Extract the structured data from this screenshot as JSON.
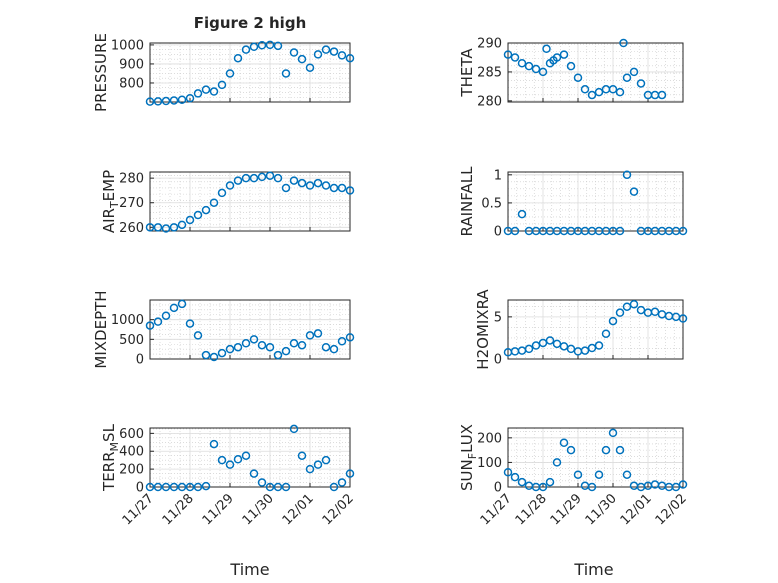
{
  "figure_title": "Figure 2 high",
  "x_axis": {
    "label": "Time",
    "tick_labels": [
      "11/27",
      "11/28",
      "11/29",
      "11/30",
      "12/01",
      "12/02"
    ],
    "range_days": [
      27,
      32
    ]
  },
  "colors": {
    "marker": "#0072BD",
    "axes": "#262626",
    "grid": "#c8c8c8",
    "background": "#ffffff"
  },
  "chart_data": [
    {
      "type": "scatter",
      "panel": "top-left",
      "ylabel": "PRESSURE",
      "ylabel_sub": "",
      "ylim": [
        700,
        1010
      ],
      "yticks": [
        800,
        900,
        1000
      ],
      "ytick_labels": [
        "800",
        "900",
        "1000"
      ],
      "grid": true,
      "marker": "circle",
      "x": [
        27.0,
        27.2,
        27.4,
        27.6,
        27.8,
        28.0,
        28.2,
        28.4,
        28.6,
        28.8,
        29.0,
        29.2,
        29.4,
        29.6,
        29.8,
        30.0,
        30.2,
        30.4,
        30.6,
        30.8,
        31.0,
        31.2,
        31.4,
        31.6,
        31.8,
        32.0
      ],
      "y": [
        702,
        703,
        705,
        708,
        712,
        720,
        745,
        765,
        755,
        790,
        850,
        930,
        975,
        990,
        998,
        1000,
        995,
        850,
        960,
        925,
        880,
        950,
        975,
        965,
        945,
        930
      ]
    },
    {
      "type": "scatter",
      "panel": "top-right",
      "ylabel": "THETA",
      "ylabel_sub": "",
      "ylim": [
        279.8,
        290
      ],
      "yticks": [
        280,
        285,
        290
      ],
      "ytick_labels": [
        "280",
        "285",
        "290"
      ],
      "grid": true,
      "marker": "circle",
      "x": [
        27.0,
        27.2,
        27.4,
        27.6,
        27.8,
        28.0,
        28.1,
        28.2,
        28.3,
        28.4,
        28.6,
        28.8,
        29.0,
        29.2,
        29.4,
        29.6,
        29.8,
        30.0,
        30.2,
        30.3,
        30.4,
        30.6,
        30.8,
        31.0,
        31.2,
        31.4
      ],
      "y": [
        288,
        287.5,
        286.5,
        286,
        285.5,
        285,
        289,
        286.5,
        287,
        287.5,
        288,
        286,
        284,
        282,
        281,
        281.5,
        282,
        282,
        281.5,
        290,
        284,
        285,
        283,
        281,
        281,
        281
      ]
    },
    {
      "type": "scatter",
      "panel": "mid-upper-left",
      "ylabel": "AIR",
      "ylabel_sub": "T",
      "ylabel_suffix": "EMP",
      "ylim": [
        258.5,
        282.5
      ],
      "yticks": [
        260,
        270,
        280
      ],
      "ytick_labels": [
        "260",
        "270",
        "280"
      ],
      "grid": true,
      "marker": "circle",
      "x": [
        27.0,
        27.2,
        27.4,
        27.6,
        27.8,
        28.0,
        28.2,
        28.4,
        28.6,
        28.8,
        29.0,
        29.2,
        29.4,
        29.6,
        29.8,
        30.0,
        30.2,
        30.4,
        30.6,
        30.8,
        31.0,
        31.2,
        31.4,
        31.6,
        31.8,
        32.0
      ],
      "y": [
        260,
        260,
        259.5,
        260,
        261,
        263,
        265,
        267,
        270,
        274,
        277,
        279,
        280,
        280,
        280.5,
        281,
        280,
        276,
        279,
        278,
        277,
        278,
        277,
        276,
        276,
        275
      ]
    },
    {
      "type": "scatter",
      "panel": "mid-upper-right",
      "ylabel": "RAINFALL",
      "ylabel_sub": "",
      "ylim": [
        0,
        1.05
      ],
      "yticks": [
        0,
        0.5,
        1
      ],
      "ytick_labels": [
        "0",
        "0.5",
        "1"
      ],
      "grid": true,
      "marker": "circle",
      "x": [
        27.0,
        27.2,
        27.4,
        27.6,
        27.8,
        28.0,
        28.2,
        28.4,
        28.6,
        28.8,
        29.0,
        29.2,
        29.4,
        29.6,
        29.8,
        30.0,
        30.2,
        30.4,
        30.6,
        30.8,
        31.0,
        31.2,
        31.4,
        31.6,
        31.8,
        32.0
      ],
      "y": [
        0,
        0,
        0.3,
        0,
        0,
        0,
        0,
        0,
        0,
        0,
        0,
        0,
        0,
        0,
        0,
        0,
        0,
        1,
        0.7,
        0,
        0,
        0,
        0,
        0,
        0,
        0
      ]
    },
    {
      "type": "scatter",
      "panel": "mid-lower-left",
      "ylabel": "MIXDEPTH",
      "ylabel_sub": "",
      "ylim": [
        0,
        1500
      ],
      "yticks": [
        0,
        500,
        1000
      ],
      "ytick_labels": [
        "0",
        "500",
        "1000"
      ],
      "grid": true,
      "marker": "circle",
      "x": [
        27.0,
        27.2,
        27.4,
        27.6,
        27.8,
        28.0,
        28.2,
        28.4,
        28.6,
        28.8,
        29.0,
        29.2,
        29.4,
        29.6,
        29.8,
        30.0,
        30.2,
        30.4,
        30.6,
        30.8,
        31.0,
        31.2,
        31.4,
        31.6,
        31.8,
        32.0
      ],
      "y": [
        850,
        950,
        1100,
        1300,
        1400,
        900,
        600,
        100,
        50,
        150,
        250,
        300,
        400,
        500,
        350,
        300,
        100,
        200,
        400,
        350,
        600,
        650,
        300,
        250,
        450,
        550
      ]
    },
    {
      "type": "scatter",
      "panel": "mid-lower-right",
      "ylabel": "H2OMIXRA",
      "ylabel_sub": "",
      "ylim": [
        0,
        7
      ],
      "yticks": [
        0,
        5
      ],
      "ytick_labels": [
        "0",
        "5"
      ],
      "grid": true,
      "marker": "circle",
      "x": [
        27.0,
        27.2,
        27.4,
        27.6,
        27.8,
        28.0,
        28.2,
        28.4,
        28.6,
        28.8,
        29.0,
        29.2,
        29.4,
        29.6,
        29.8,
        30.0,
        30.2,
        30.4,
        30.6,
        30.8,
        31.0,
        31.2,
        31.4,
        31.6,
        31.8,
        32.0
      ],
      "y": [
        0.8,
        0.9,
        1.0,
        1.2,
        1.6,
        1.9,
        2.2,
        1.8,
        1.5,
        1.2,
        0.9,
        1.0,
        1.3,
        1.6,
        3.0,
        4.5,
        5.5,
        6.2,
        6.5,
        5.8,
        5.5,
        5.6,
        5.3,
        5.1,
        5.0,
        4.8
      ]
    },
    {
      "type": "scatter",
      "panel": "bottom-left",
      "ylabel": "TERR",
      "ylabel_sub": "M",
      "ylabel_suffix": "SL",
      "ylim": [
        0,
        660
      ],
      "yticks": [
        0,
        200,
        400,
        600
      ],
      "ytick_labels": [
        "0",
        "200",
        "400",
        "600"
      ],
      "grid": true,
      "marker": "circle",
      "x": [
        27.0,
        27.2,
        27.4,
        27.6,
        27.8,
        28.0,
        28.2,
        28.4,
        28.6,
        28.8,
        29.0,
        29.2,
        29.4,
        29.6,
        29.8,
        30.0,
        30.2,
        30.4,
        30.6,
        30.8,
        31.0,
        31.2,
        31.4,
        31.6,
        31.8,
        32.0
      ],
      "y": [
        0,
        0,
        0,
        0,
        0,
        0,
        0,
        10,
        480,
        300,
        250,
        310,
        350,
        150,
        50,
        0,
        0,
        0,
        650,
        350,
        200,
        250,
        300,
        0,
        50,
        150
      ]
    },
    {
      "type": "scatter",
      "panel": "bottom-right",
      "ylabel": "SUN",
      "ylabel_sub": "F",
      "ylabel_suffix": "LUX",
      "ylim": [
        0,
        240
      ],
      "yticks": [
        0,
        100,
        200
      ],
      "ytick_labels": [
        "0",
        "100",
        "200"
      ],
      "grid": true,
      "marker": "circle",
      "x": [
        27.0,
        27.2,
        27.4,
        27.6,
        27.8,
        28.0,
        28.2,
        28.4,
        28.6,
        28.8,
        29.0,
        29.2,
        29.4,
        29.6,
        29.8,
        30.0,
        30.2,
        30.4,
        30.6,
        30.8,
        31.0,
        31.2,
        31.4,
        31.6,
        31.8,
        32.0
      ],
      "y": [
        60,
        40,
        20,
        5,
        0,
        0,
        20,
        100,
        180,
        150,
        50,
        5,
        0,
        50,
        150,
        220,
        150,
        50,
        5,
        0,
        5,
        10,
        5,
        0,
        0,
        10
      ]
    }
  ]
}
